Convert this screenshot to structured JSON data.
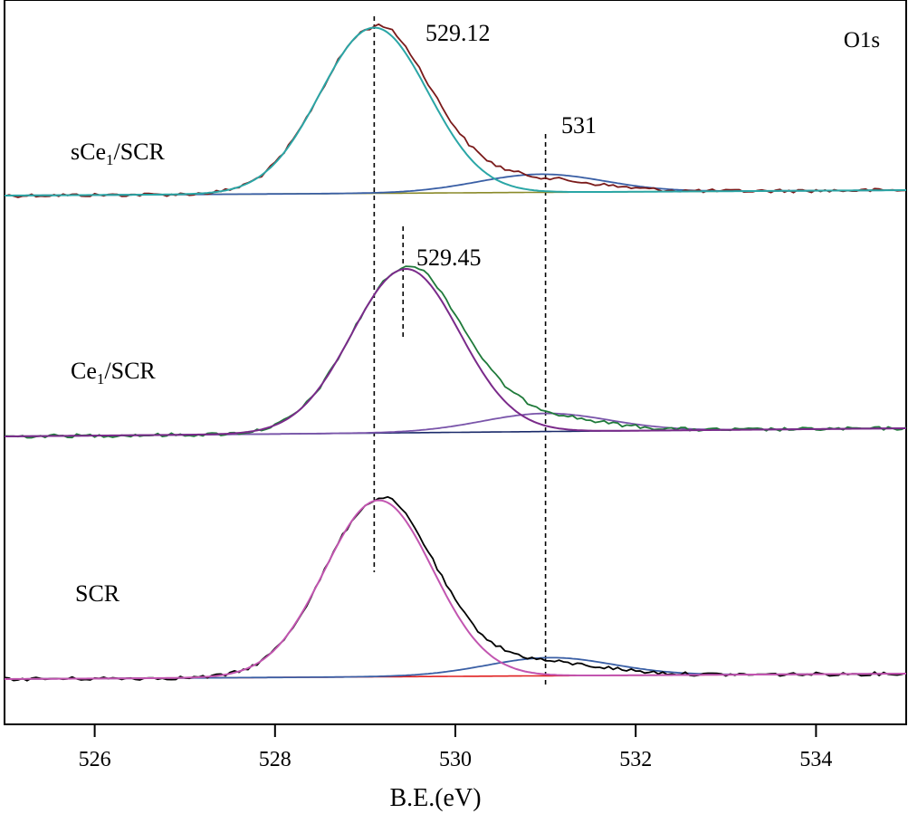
{
  "chart_data": {
    "type": "line",
    "title": "O1s",
    "xlabel": "B.E.(eV)",
    "ylabel": "",
    "xlim": [
      525,
      535
    ],
    "xticks": [
      526,
      528,
      530,
      532,
      534
    ],
    "xtick_labels": [
      "526",
      "528",
      "530",
      "532",
      "534"
    ],
    "peak_labels": [
      "529.12",
      "531",
      "529.45"
    ],
    "reference_lines": [
      {
        "name": "529.12",
        "x": 529.1
      },
      {
        "name": "531",
        "x": 531.0
      },
      {
        "name": "529.45",
        "x": 529.42
      }
    ],
    "panels": [
      {
        "name": "sCe1/SCR",
        "label_main": "sCe",
        "label_sub": "1",
        "label_tail": "/SCR",
        "baseline": [
          1.0,
          0.0
        ],
        "main_peak": {
          "center": 529.1,
          "amplitude": 183,
          "sigma": 0.6
        },
        "shoulder_peak": {
          "center": 530.95,
          "amplitude": 20,
          "sigma": 0.7
        },
        "colors": {
          "raw": "#7a1a1a",
          "fit_main": "#2aa6a6",
          "fit_shoulder": "#3a5fa5",
          "background": "#8a8a2a"
        }
      },
      {
        "name": "Ce1/SCR",
        "label_main": "Ce",
        "label_sub": "1",
        "label_tail": "/SCR",
        "baseline": [
          1.0,
          0.0
        ],
        "main_peak": {
          "center": 529.45,
          "amplitude": 181,
          "sigma": 0.6
        },
        "shoulder_peak": {
          "center": 531.0,
          "amplitude": 20,
          "sigma": 0.7
        },
        "colors": {
          "raw": "#1f7a3a",
          "fit_main": "#7a2a8a",
          "fit_shoulder": "#7a55aa",
          "background": "#1a2a6a"
        }
      },
      {
        "name": "SCR",
        "label_main": "SCR",
        "label_sub": "",
        "label_tail": "",
        "baseline": [
          1.0,
          0.0
        ],
        "main_peak": {
          "center": 529.15,
          "amplitude": 195,
          "sigma": 0.6
        },
        "shoulder_peak": {
          "center": 531.05,
          "amplitude": 20,
          "sigma": 0.7
        },
        "colors": {
          "raw": "#000000",
          "fit_main": "#c255b0",
          "fit_shoulder": "#3a5fa5",
          "background": "#e02020"
        }
      }
    ]
  }
}
